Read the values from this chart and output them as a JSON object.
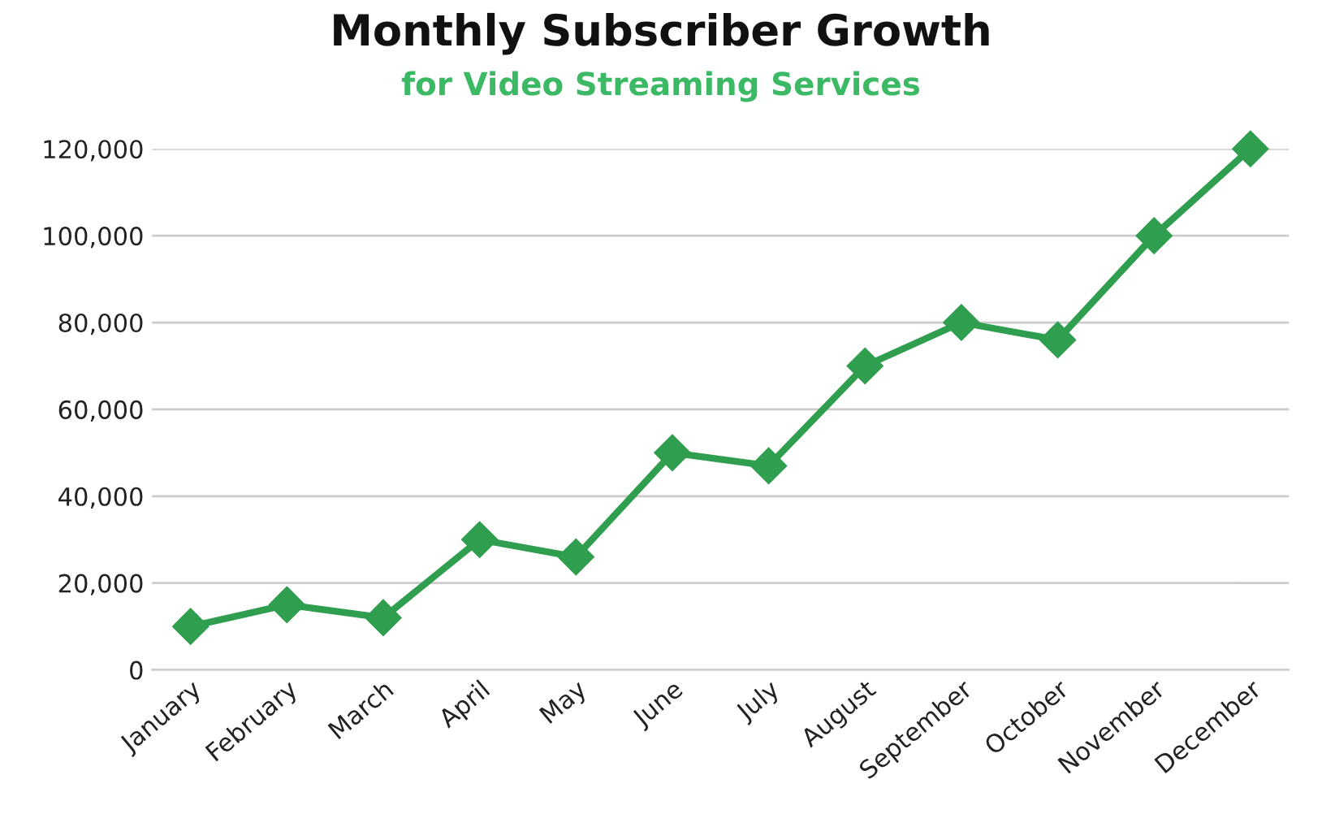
{
  "chart_data": {
    "type": "line",
    "title": "Monthly Subscriber Growth",
    "subtitle": "for Video Streaming Services",
    "categories": [
      "January",
      "February",
      "March",
      "April",
      "May",
      "June",
      "July",
      "August",
      "September",
      "October",
      "November",
      "December"
    ],
    "series": [
      {
        "color": "#2f9e4e",
        "values": [
          10000,
          15000,
          12000,
          30000,
          26000,
          50000,
          47000,
          70000,
          80000,
          76000,
          100000,
          120000
        ]
      }
    ],
    "ylim": [
      0,
      120000
    ],
    "yticks": [
      {
        "value": 0,
        "label": "0"
      },
      {
        "value": 20000,
        "label": "20,000"
      },
      {
        "value": 40000,
        "label": "40,000"
      },
      {
        "value": 60000,
        "label": "60,000"
      },
      {
        "value": 80000,
        "label": "80,000"
      },
      {
        "value": 100000,
        "label": "100,000"
      },
      {
        "value": 120000,
        "label": "120,000"
      }
    ],
    "grid": "y",
    "marker": "diamond",
    "line_style": "solid",
    "legend": false
  }
}
